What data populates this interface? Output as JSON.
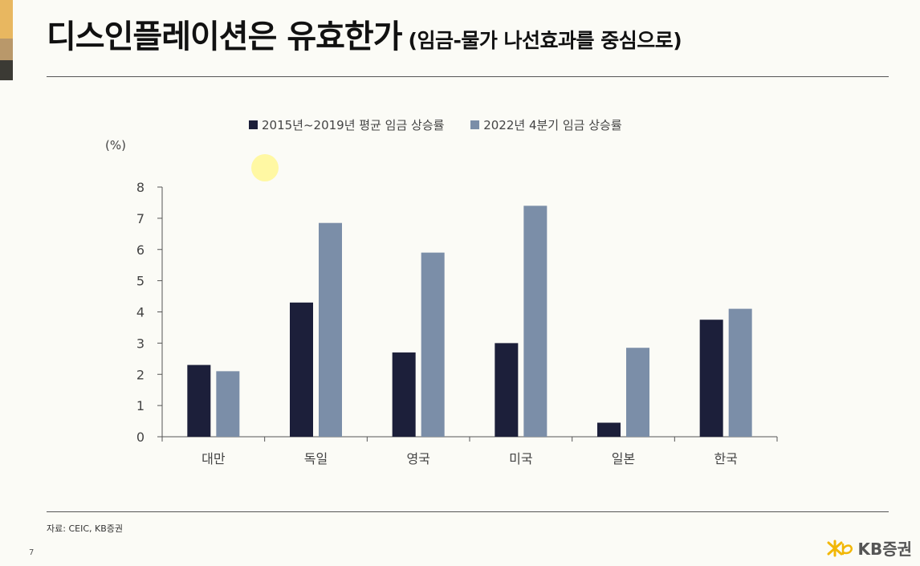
{
  "header": {
    "title": "디스인플레이션은 유효한가",
    "subtitle": "(임금-물가 나선효과를 중심으로)"
  },
  "chart_data": {
    "type": "bar",
    "title": "",
    "ylabel": "(%)",
    "xlabel": "",
    "ylim": [
      0,
      8
    ],
    "yticks": [
      0,
      1,
      2,
      3,
      4,
      5,
      6,
      7,
      8
    ],
    "categories": [
      "대만",
      "독일",
      "영국",
      "미국",
      "일본",
      "한국"
    ],
    "series": [
      {
        "name": "2015년~2019년 평균 임금 상승률",
        "color": "#1c1f3a",
        "values": [
          2.3,
          4.3,
          2.7,
          3.0,
          0.45,
          3.75
        ]
      },
      {
        "name": "2022년 4분기 임금 상승률",
        "color": "#7b8ea8",
        "values": [
          2.1,
          6.85,
          5.9,
          7.4,
          2.85,
          4.1
        ]
      }
    ],
    "legend_position": "top-center"
  },
  "footer": {
    "source": "자료: CEIC, KB증권",
    "page_number": "7",
    "logo_text": "KB증권",
    "logo_icon": "kb-star-icon"
  }
}
